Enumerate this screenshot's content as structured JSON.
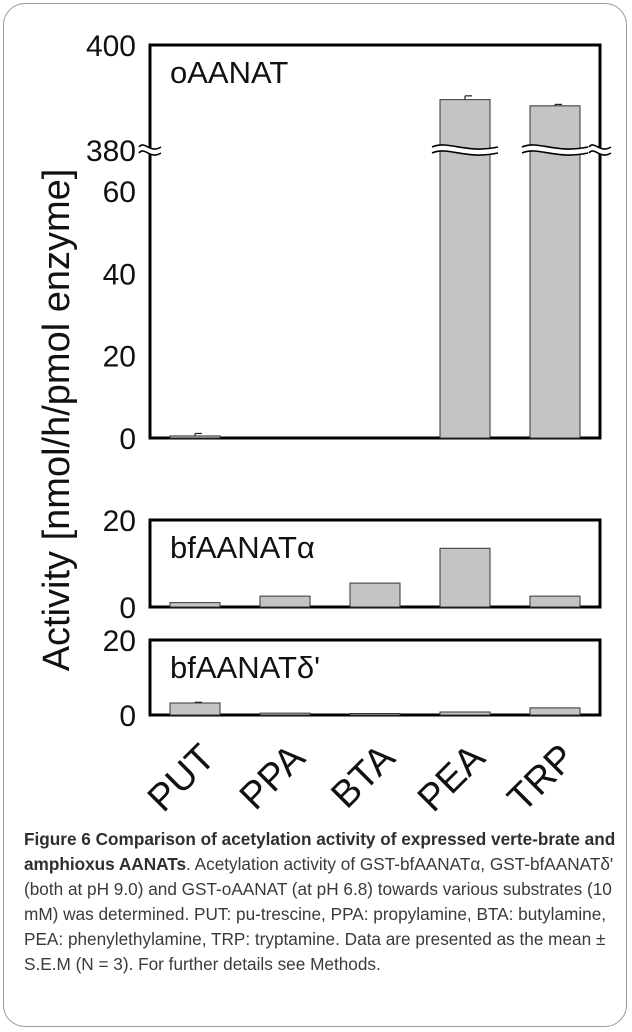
{
  "chart_data": {
    "type": "bar",
    "categories": [
      "PUT",
      "PPA",
      "BTA",
      "PEA",
      "TRP"
    ],
    "ylabel": "Activity  [nmol/h/pmol enzyme]",
    "panels": [
      {
        "name": "oAANAT",
        "label": "oAANAT",
        "values": [
          0.5,
          0,
          0,
          390.6,
          389.3
        ],
        "errors": [
          0.6,
          0,
          0,
          0.8,
          0.3
        ],
        "ylim": [
          0,
          400
        ],
        "yticks": [
          0,
          20,
          40,
          60,
          380,
          400
        ],
        "axis_break": {
          "from": 70,
          "to": 380
        },
        "error_bars": true
      },
      {
        "name": "bfAANATα",
        "label": "bfAANATα",
        "values": [
          1.0,
          2.5,
          5.5,
          13.5,
          2.5
        ],
        "errors": [
          0,
          0,
          0,
          0,
          0
        ],
        "ylim": [
          0,
          20
        ],
        "yticks": [
          0,
          20
        ],
        "error_bars": false
      },
      {
        "name": "bfAANATδ'",
        "label": "bfAANATδ'",
        "values": [
          3.2,
          0.5,
          0.4,
          0.8,
          1.9
        ],
        "errors": [
          0.2,
          0,
          0,
          0,
          0
        ],
        "ylim": [
          0,
          20
        ],
        "yticks": [
          0,
          20
        ],
        "error_bars": true
      }
    ],
    "bar_color": "#c4c4c4",
    "bar_stroke": "#333333",
    "grid": false,
    "legend": "none"
  },
  "caption": {
    "title": "Figure 6 Comparison of acetylation activity of expressed verte-brate and amphioxus AANATs",
    "text": ". Acetylation activity of GST-bfAANATα, GST-bfAANATδ' (both at pH 9.0) and GST-oAANAT (at pH 6.8) towards various substrates (10 mM) was determined. PUT: pu-trescine, PPA: propylamine, BTA: butylamine, PEA: phenylethylamine, TRP: tryptamine. Data are presented as the mean ± S.E.M (N = 3). For further details see Methods."
  }
}
